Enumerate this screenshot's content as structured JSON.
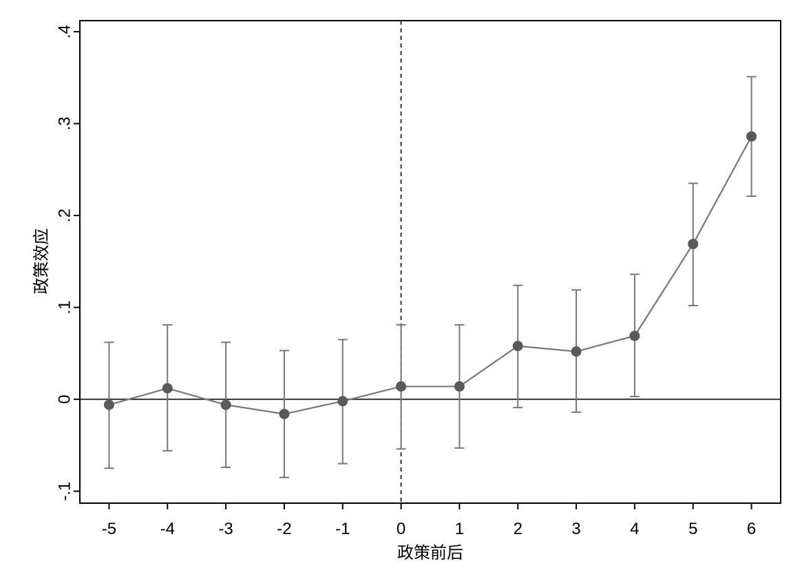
{
  "chart_data": {
    "type": "line",
    "title": "",
    "xlabel": "政策前后",
    "ylabel": "政策效应",
    "x": [
      -5,
      -4,
      -3,
      -2,
      -1,
      0,
      1,
      2,
      3,
      4,
      5,
      6
    ],
    "x_tick_labels": [
      "-5",
      "-4",
      "-3",
      "-2",
      "-1",
      "0",
      "1",
      "2",
      "3",
      "4",
      "5",
      "6"
    ],
    "xlim": [
      -5.5,
      6.5
    ],
    "y_ticks": [
      -0.1,
      0,
      0.1,
      0.2,
      0.3,
      0.4
    ],
    "y_tick_labels": [
      "-.1",
      "0",
      ".1",
      ".2",
      ".3",
      ".4"
    ],
    "ylim": [
      -0.113,
      0.412
    ],
    "series": [
      {
        "values": [
          -0.006,
          0.012,
          -0.006,
          -0.016,
          -0.002,
          0.014,
          0.014,
          0.058,
          0.052,
          0.069,
          0.169,
          0.286
        ],
        "ci_lower": [
          -0.075,
          -0.056,
          -0.074,
          -0.085,
          -0.07,
          -0.054,
          -0.053,
          -0.009,
          -0.014,
          0.003,
          0.102,
          0.221
        ],
        "ci_upper": [
          0.062,
          0.081,
          0.062,
          0.053,
          0.065,
          0.081,
          0.081,
          0.124,
          0.119,
          0.136,
          0.235,
          0.351
        ]
      }
    ],
    "reference_lines": {
      "horizontal_y": 0,
      "vertical_x": 0
    },
    "grid": false,
    "colors": {
      "series": "#777777",
      "points": "#5a5a5a",
      "axis": "#000000",
      "reference": "#333333"
    }
  }
}
